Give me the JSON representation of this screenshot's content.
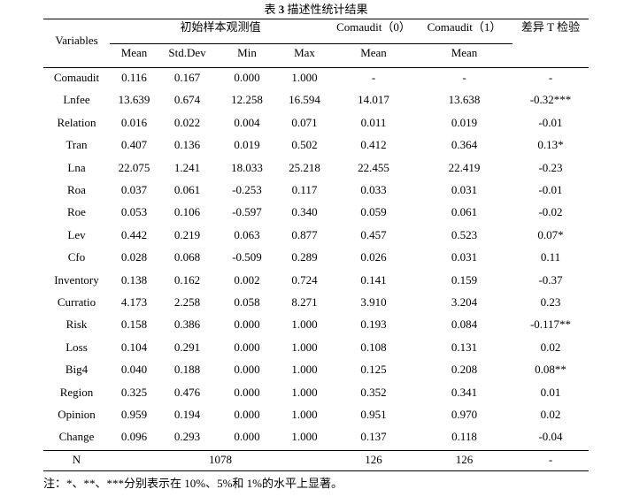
{
  "table": {
    "title_prefix": "表",
    "title_number": "3",
    "title_text": "描述性统计结果",
    "header": {
      "variables": "Variables",
      "group_initial": "初始样本观测值",
      "group_c0": "Comaudit（0）",
      "group_c1": "Comaudit（1）",
      "group_diff": "差异 T 检验",
      "sub_mean": "Mean",
      "sub_std": "Std.Dev",
      "sub_min": "Min",
      "sub_max": "Max",
      "sub_c0_mean": "Mean",
      "sub_c1_mean": "Mean"
    },
    "rows": [
      [
        "Comaudit",
        "0.116",
        "0.167",
        "0.000",
        "1.000",
        "-",
        "-",
        "-"
      ],
      [
        "Lnfee",
        "13.639",
        "0.674",
        "12.258",
        "16.594",
        "14.017",
        "13.638",
        "-0.32***"
      ],
      [
        "Relation",
        "0.016",
        "0.022",
        "0.004",
        "0.071",
        "0.011",
        "0.019",
        "-0.01"
      ],
      [
        "Tran",
        "0.407",
        "0.136",
        "0.019",
        "0.502",
        "0.412",
        "0.364",
        "0.13*"
      ],
      [
        "Lna",
        "22.075",
        "1.241",
        "18.033",
        "25.218",
        "22.455",
        "22.419",
        "-0.23"
      ],
      [
        "Roa",
        "0.037",
        "0.061",
        "-0.253",
        "0.117",
        "0.033",
        "0.031",
        "-0.01"
      ],
      [
        "Roe",
        "0.053",
        "0.106",
        "-0.597",
        "0.340",
        "0.059",
        "0.061",
        "-0.02"
      ],
      [
        "Lev",
        "0.442",
        "0.219",
        "0.063",
        "0.877",
        "0.457",
        "0.523",
        "0.07*"
      ],
      [
        "Cfo",
        "0.028",
        "0.068",
        "-0.509",
        "0.289",
        "0.026",
        "0.031",
        "0.11"
      ],
      [
        "Inventory",
        "0.138",
        "0.162",
        "0.002",
        "0.724",
        "0.141",
        "0.159",
        "-0.37"
      ],
      [
        "Curratio",
        "4.173",
        "2.258",
        "0.058",
        "8.271",
        "3.910",
        "3.204",
        "0.23"
      ],
      [
        "Risk",
        "0.158",
        "0.386",
        "0.000",
        "1.000",
        "0.193",
        "0.084",
        "-0.117**"
      ],
      [
        "Loss",
        "0.104",
        "0.291",
        "0.000",
        "1.000",
        "0.108",
        "0.131",
        "0.02"
      ],
      [
        "Big4",
        "0.040",
        "0.188",
        "0.000",
        "1.000",
        "0.125",
        "0.208",
        "0.08**"
      ],
      [
        "Region",
        "0.325",
        "0.476",
        "0.000",
        "1.000",
        "0.352",
        "0.341",
        "0.01"
      ],
      [
        "Opinion",
        "0.959",
        "0.194",
        "0.000",
        "1.000",
        "0.951",
        "0.970",
        "0.02"
      ],
      [
        "Change",
        "0.096",
        "0.293",
        "0.000",
        "1.000",
        "0.137",
        "0.118",
        "-0.04"
      ]
    ],
    "n_row": {
      "label": "N",
      "initial": "1078",
      "c0": "126",
      "c1": "126",
      "diff": "-"
    },
    "note": "注：*、**、***分别表示在 10%、5%和 1%的水平上显著。"
  }
}
